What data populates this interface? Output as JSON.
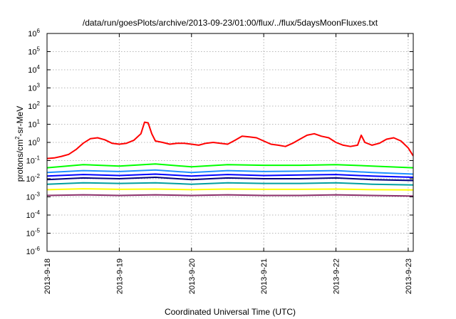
{
  "chart_data": {
    "type": "line",
    "title": "/data/run/goesPlots/archive/2013-09-23/01:00/flux/../flux/5daysMoonFluxes.txt",
    "xlabel": "Coordinated Universal Time (UTC)",
    "ylabel": {
      "base": "protons/cm",
      "sup": "2",
      "rest": "-sr-MeV"
    },
    "y_scale": "log",
    "ylim_exp": [
      -6,
      6
    ],
    "y_ticks": [
      {
        "base": "10",
        "exp": "6"
      },
      {
        "base": "10",
        "exp": "5"
      },
      {
        "base": "10",
        "exp": "4"
      },
      {
        "base": "10",
        "exp": "3"
      },
      {
        "base": "10",
        "exp": "2"
      },
      {
        "base": "10",
        "exp": "1"
      },
      {
        "base": "10",
        "exp": "0"
      },
      {
        "base": "10",
        "exp": "-1"
      },
      {
        "base": "10",
        "exp": "-2"
      },
      {
        "base": "10",
        "exp": "-3"
      },
      {
        "base": "10",
        "exp": "-4"
      },
      {
        "base": "10",
        "exp": "-5"
      },
      {
        "base": "10",
        "exp": "-6"
      }
    ],
    "x_ticks": [
      "2013-9-18",
      "2013-9-19",
      "2013-9-20",
      "2013-9-21",
      "2013-9-22",
      "2013-9-23"
    ],
    "xlim_days": [
      0,
      5.07
    ],
    "grid": true,
    "legend": "none",
    "series": [
      {
        "color": "#8b2f6b",
        "points": [
          [
            0.0,
            0.0012
          ],
          [
            0.5,
            0.0013
          ],
          [
            1.0,
            0.0012
          ],
          [
            1.5,
            0.0013
          ],
          [
            2.0,
            0.0012
          ],
          [
            2.5,
            0.0013
          ],
          [
            3.0,
            0.0012
          ],
          [
            3.5,
            0.0012
          ],
          [
            4.0,
            0.0013
          ],
          [
            4.5,
            0.0012
          ],
          [
            5.07,
            0.0011
          ]
        ]
      },
      {
        "color": "#ffff00",
        "points": [
          [
            0.0,
            0.0025
          ],
          [
            0.5,
            0.0028
          ],
          [
            1.0,
            0.0026
          ],
          [
            1.5,
            0.0027
          ],
          [
            2.0,
            0.0025
          ],
          [
            2.5,
            0.0027
          ],
          [
            3.0,
            0.0026
          ],
          [
            3.5,
            0.0026
          ],
          [
            4.0,
            0.0027
          ],
          [
            4.5,
            0.0025
          ],
          [
            5.07,
            0.0024
          ]
        ]
      },
      {
        "color": "#00a0a0",
        "points": [
          [
            0.0,
            0.005
          ],
          [
            0.5,
            0.006
          ],
          [
            1.0,
            0.0055
          ],
          [
            1.5,
            0.006
          ],
          [
            2.0,
            0.005
          ],
          [
            2.5,
            0.006
          ],
          [
            3.0,
            0.0055
          ],
          [
            3.5,
            0.0055
          ],
          [
            4.0,
            0.006
          ],
          [
            4.5,
            0.005
          ],
          [
            5.07,
            0.0045
          ]
        ]
      },
      {
        "color": "#000080",
        "points": [
          [
            0.0,
            0.009
          ],
          [
            0.5,
            0.011
          ],
          [
            1.0,
            0.01
          ],
          [
            1.5,
            0.012
          ],
          [
            2.0,
            0.009
          ],
          [
            2.5,
            0.011
          ],
          [
            3.0,
            0.01
          ],
          [
            3.5,
            0.01
          ],
          [
            4.0,
            0.011
          ],
          [
            4.5,
            0.009
          ],
          [
            5.07,
            0.008
          ]
        ]
      },
      {
        "color": "#0000ff",
        "points": [
          [
            0.0,
            0.014
          ],
          [
            0.5,
            0.017
          ],
          [
            1.0,
            0.015
          ],
          [
            1.5,
            0.018
          ],
          [
            2.0,
            0.014
          ],
          [
            2.5,
            0.017
          ],
          [
            3.0,
            0.015
          ],
          [
            3.5,
            0.016
          ],
          [
            4.0,
            0.017
          ],
          [
            4.5,
            0.014
          ],
          [
            5.07,
            0.012
          ]
        ]
      },
      {
        "color": "#1e90ff",
        "points": [
          [
            0.0,
            0.022
          ],
          [
            0.5,
            0.028
          ],
          [
            1.0,
            0.025
          ],
          [
            1.5,
            0.03
          ],
          [
            2.0,
            0.022
          ],
          [
            2.5,
            0.028
          ],
          [
            3.0,
            0.025
          ],
          [
            3.5,
            0.026
          ],
          [
            4.0,
            0.028
          ],
          [
            4.5,
            0.022
          ],
          [
            5.07,
            0.018
          ]
        ]
      },
      {
        "color": "#00ff00",
        "points": [
          [
            0.0,
            0.04
          ],
          [
            0.5,
            0.06
          ],
          [
            1.0,
            0.05
          ],
          [
            1.5,
            0.065
          ],
          [
            2.0,
            0.045
          ],
          [
            2.5,
            0.06
          ],
          [
            3.0,
            0.055
          ],
          [
            3.5,
            0.055
          ],
          [
            4.0,
            0.06
          ],
          [
            4.5,
            0.05
          ],
          [
            5.07,
            0.04
          ]
        ]
      },
      {
        "color": "#ff0000",
        "points": [
          [
            0.0,
            0.13
          ],
          [
            0.1,
            0.14
          ],
          [
            0.2,
            0.17
          ],
          [
            0.3,
            0.22
          ],
          [
            0.4,
            0.4
          ],
          [
            0.5,
            0.9
          ],
          [
            0.6,
            1.6
          ],
          [
            0.7,
            1.8
          ],
          [
            0.8,
            1.4
          ],
          [
            0.9,
            0.9
          ],
          [
            1.0,
            0.8
          ],
          [
            1.1,
            0.9
          ],
          [
            1.2,
            1.3
          ],
          [
            1.3,
            3.0
          ],
          [
            1.35,
            13.0
          ],
          [
            1.4,
            12.0
          ],
          [
            1.45,
            3.0
          ],
          [
            1.5,
            1.2
          ],
          [
            1.6,
            1.0
          ],
          [
            1.7,
            0.8
          ],
          [
            1.8,
            0.9
          ],
          [
            1.9,
            0.9
          ],
          [
            2.0,
            0.8
          ],
          [
            2.1,
            0.7
          ],
          [
            2.2,
            0.9
          ],
          [
            2.3,
            1.0
          ],
          [
            2.4,
            0.9
          ],
          [
            2.5,
            0.8
          ],
          [
            2.6,
            1.3
          ],
          [
            2.7,
            2.2
          ],
          [
            2.8,
            2.0
          ],
          [
            2.9,
            1.8
          ],
          [
            3.0,
            1.2
          ],
          [
            3.1,
            0.8
          ],
          [
            3.2,
            0.7
          ],
          [
            3.3,
            0.6
          ],
          [
            3.4,
            0.9
          ],
          [
            3.5,
            1.5
          ],
          [
            3.6,
            2.5
          ],
          [
            3.7,
            3.0
          ],
          [
            3.8,
            2.2
          ],
          [
            3.9,
            1.8
          ],
          [
            4.0,
            1.0
          ],
          [
            4.1,
            0.7
          ],
          [
            4.2,
            0.6
          ],
          [
            4.3,
            0.7
          ],
          [
            4.35,
            2.5
          ],
          [
            4.4,
            1.0
          ],
          [
            4.5,
            0.7
          ],
          [
            4.6,
            0.9
          ],
          [
            4.7,
            1.5
          ],
          [
            4.8,
            1.8
          ],
          [
            4.9,
            1.2
          ],
          [
            5.0,
            0.5
          ],
          [
            5.07,
            0.18
          ]
        ]
      }
    ]
  }
}
